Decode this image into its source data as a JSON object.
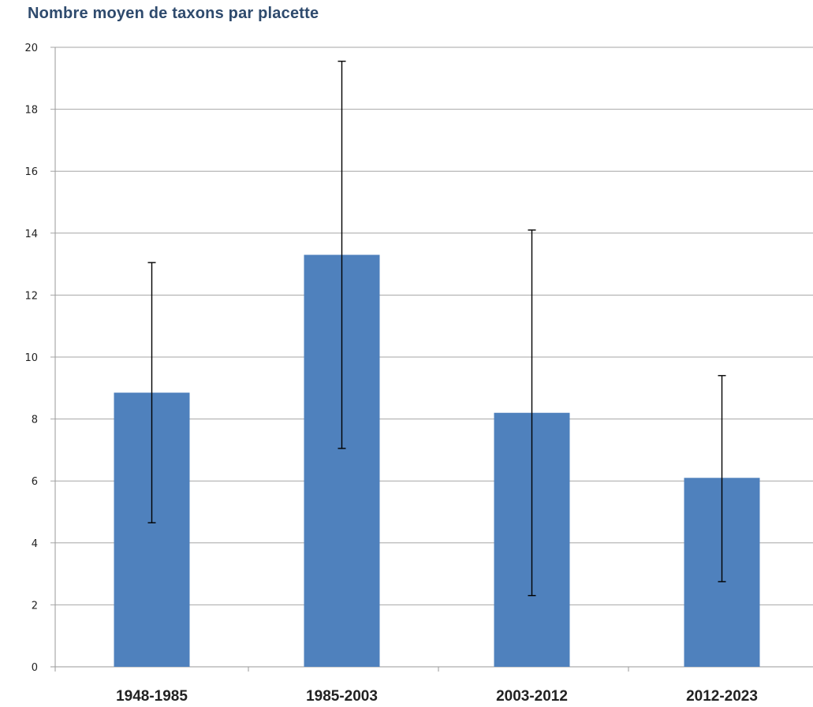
{
  "chart_data": {
    "type": "bar",
    "title": "Nombre moyen de taxons par placette",
    "xlabel": "",
    "ylabel": "",
    "categories": [
      "1948-1985",
      "1985-2003",
      "2003-2012",
      "2012-2023"
    ],
    "values": [
      8.85,
      13.3,
      8.2,
      6.1
    ],
    "error_bars": [
      {
        "low": 4.65,
        "high": 13.05
      },
      {
        "low": 7.05,
        "high": 19.55
      },
      {
        "low": 2.3,
        "high": 14.1
      },
      {
        "low": 2.75,
        "high": 9.4
      }
    ],
    "ylim": [
      0,
      20
    ],
    "yticks": [
      "0",
      "2",
      "4",
      "6",
      "8",
      "10",
      "12",
      "14",
      "16",
      "18",
      "20"
    ],
    "grid": true,
    "legend": "none",
    "bar_color": "#4f81bd"
  }
}
